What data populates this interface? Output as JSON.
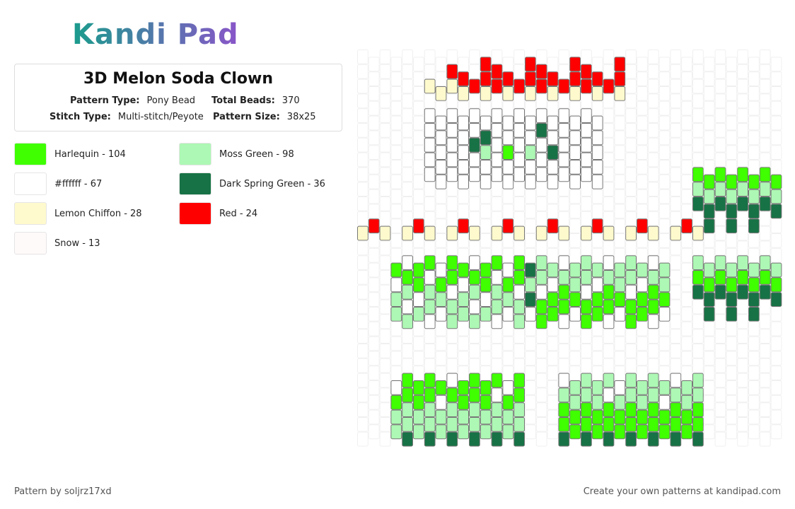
{
  "header": {
    "logo": "Kandi Pad"
  },
  "pattern": {
    "title": "3D Melon Soda Clown",
    "fields": [
      {
        "label": "Pattern Type:",
        "value": "Pony Bead"
      },
      {
        "label": "Total Beads:",
        "value": "370"
      },
      {
        "label": "Stitch Type:",
        "value": "Multi-stitch/Peyote"
      },
      {
        "label": "Pattern Size:",
        "value": "38x25"
      }
    ]
  },
  "legend": [
    {
      "name": "Harlequin - 104",
      "color": "#3fff00"
    },
    {
      "name": "Moss Green - 98",
      "color": "#adf8b4"
    },
    {
      "name": "#ffffff - 67",
      "color": "#ffffff"
    },
    {
      "name": "Dark Spring Green - 36",
      "color": "#177245"
    },
    {
      "name": "Lemon Chiffon - 28",
      "color": "#fffacd"
    },
    {
      "name": "Red - 24",
      "color": "#ff0000"
    },
    {
      "name": "Snow - 13",
      "color": "#fffafa"
    }
  ],
  "footer": {
    "credit": "Pattern by soljrz17xd",
    "link": "Create your own patterns at kandipad.com"
  }
}
